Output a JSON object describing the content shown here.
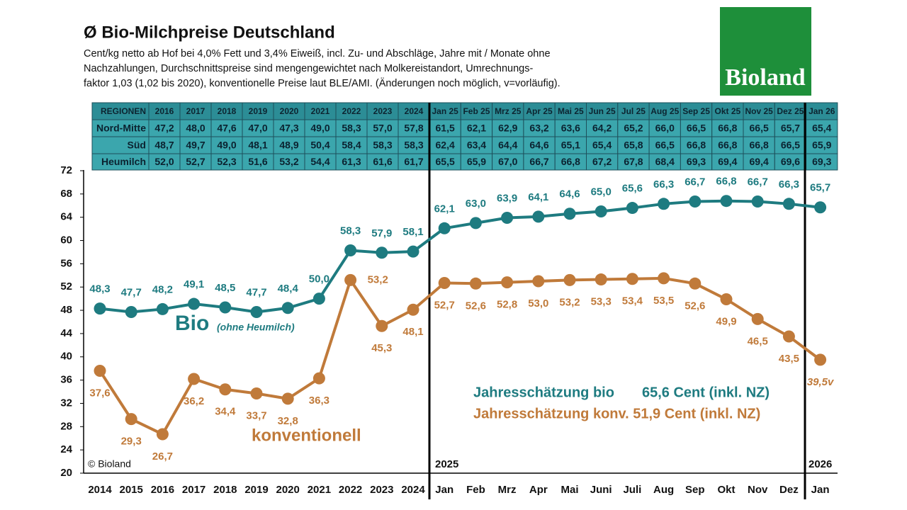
{
  "header": {
    "title": "Ø Bio-Milchpreise Deutschland",
    "subtitle": [
      "Cent/kg netto ab Hof bei 4,0% Fett und 3,4% Eiweiß, incl. Zu- und Abschläge, Jahre mit / Monate ohne",
      "Nachzahlungen, Durchschnittspreise sind mengengewichtet nach Molkereistandort, Umrechnungs-",
      "faktor 1,03 (1,02 bis 2020), konventionelle Preise laut BLE/AMI. (Änderungen noch möglich, v=vorläufig)."
    ]
  },
  "logo": "Bioland",
  "table": {
    "header": [
      "REGIONEN",
      "2016",
      "2017",
      "2018",
      "2019",
      "2020",
      "2021",
      "2022",
      "2023",
      "2024",
      "Jan 25",
      "Feb 25",
      "Mrz 25",
      "Apr 25",
      "Mai 25",
      "Jun 25",
      "Jul 25",
      "Aug 25",
      "Sep 25",
      "Okt 25",
      "Nov 25",
      "Dez 25",
      "Jan 26"
    ],
    "rows": [
      [
        "Nord-Mitte",
        "47,2",
        "48,0",
        "47,6",
        "47,0",
        "47,3",
        "49,0",
        "58,3",
        "57,0",
        "57,8",
        "61,5",
        "62,1",
        "62,9",
        "63,2",
        "63,6",
        "64,2",
        "65,2",
        "66,0",
        "66,5",
        "66,8",
        "66,5",
        "65,7",
        "65,4"
      ],
      [
        "Süd",
        "48,7",
        "49,7",
        "49,0",
        "48,1",
        "48,9",
        "50,4",
        "58,4",
        "58,3",
        "58,3",
        "62,4",
        "63,4",
        "64,4",
        "64,6",
        "65,1",
        "65,4",
        "65,8",
        "66,5",
        "66,8",
        "66,8",
        "66,8",
        "66,5",
        "65,9"
      ],
      [
        "Heumilch",
        "52,0",
        "52,7",
        "52,3",
        "51,6",
        "53,2",
        "54,4",
        "61,3",
        "61,6",
        "61,7",
        "65,5",
        "65,9",
        "67,0",
        "66,7",
        "66,8",
        "67,2",
        "67,8",
        "68,4",
        "69,3",
        "69,4",
        "69,4",
        "69,6",
        "69,3"
      ]
    ]
  },
  "chart_data": {
    "type": "line",
    "categories": [
      "2014",
      "2015",
      "2016",
      "2017",
      "2018",
      "2019",
      "2020",
      "2021",
      "2022",
      "2023",
      "2024",
      "Jan",
      "Feb",
      "Mrz",
      "Apr",
      "Mai",
      "Juni",
      "Juli",
      "Aug",
      "Sep",
      "Okt",
      "Nov",
      "Dez",
      "Jan"
    ],
    "series": [
      {
        "name": "Bio",
        "color": "#1e7b80",
        "values": [
          48.3,
          47.7,
          48.2,
          49.1,
          48.5,
          47.7,
          48.4,
          50.0,
          58.3,
          57.9,
          58.1,
          62.1,
          63.0,
          63.9,
          64.1,
          64.6,
          65.0,
          65.6,
          66.3,
          66.7,
          66.8,
          66.7,
          66.3,
          65.7
        ],
        "value_labels": [
          "48,3",
          "47,7",
          "48,2",
          "49,1",
          "48,5",
          "47,7",
          "48,4",
          "50,0",
          "58,3",
          "57,9",
          "58,1",
          "62,1",
          "63,0",
          "63,9",
          "64,1",
          "64,6",
          "65,0",
          "65,6",
          "66,3",
          "66,7",
          "66,8",
          "66,7",
          "66,3",
          "65,7"
        ]
      },
      {
        "name": "konventionell",
        "color": "#c07a3a",
        "values": [
          37.6,
          29.3,
          26.7,
          36.2,
          34.4,
          33.7,
          32.8,
          36.3,
          53.2,
          45.3,
          48.1,
          52.7,
          52.6,
          52.8,
          53.0,
          53.2,
          53.3,
          53.4,
          53.5,
          52.6,
          49.9,
          46.5,
          43.5,
          39.5
        ],
        "value_labels": [
          "37,6",
          "29,3",
          "26,7",
          "36,2",
          "34,4",
          "33,7",
          "32,8",
          "36,3",
          "53,2",
          "45,3",
          "48,1",
          "52,7",
          "52,6",
          "52,8",
          "53,0",
          "53,2",
          "53,3",
          "53,4",
          "53,5",
          "52,6",
          "49,9",
          "46,5",
          "43,5",
          "39,5v"
        ]
      }
    ],
    "ylim": [
      20,
      72
    ],
    "yticks": [
      20,
      24,
      28,
      32,
      36,
      40,
      44,
      48,
      52,
      56,
      60,
      64,
      68,
      72
    ],
    "annotations": {
      "bio_note": "(ohne Heumilch)",
      "estimate_bio": "Jahresschätzung bio",
      "estimate_bio_value": "65,6 Cent (inkl. NZ)",
      "estimate_konv": "Jahresschätzung konv. 51,9 Cent (inkl. NZ)",
      "copyright": "© Bioland",
      "year_2025": "2025",
      "year_2026": "2026"
    }
  }
}
